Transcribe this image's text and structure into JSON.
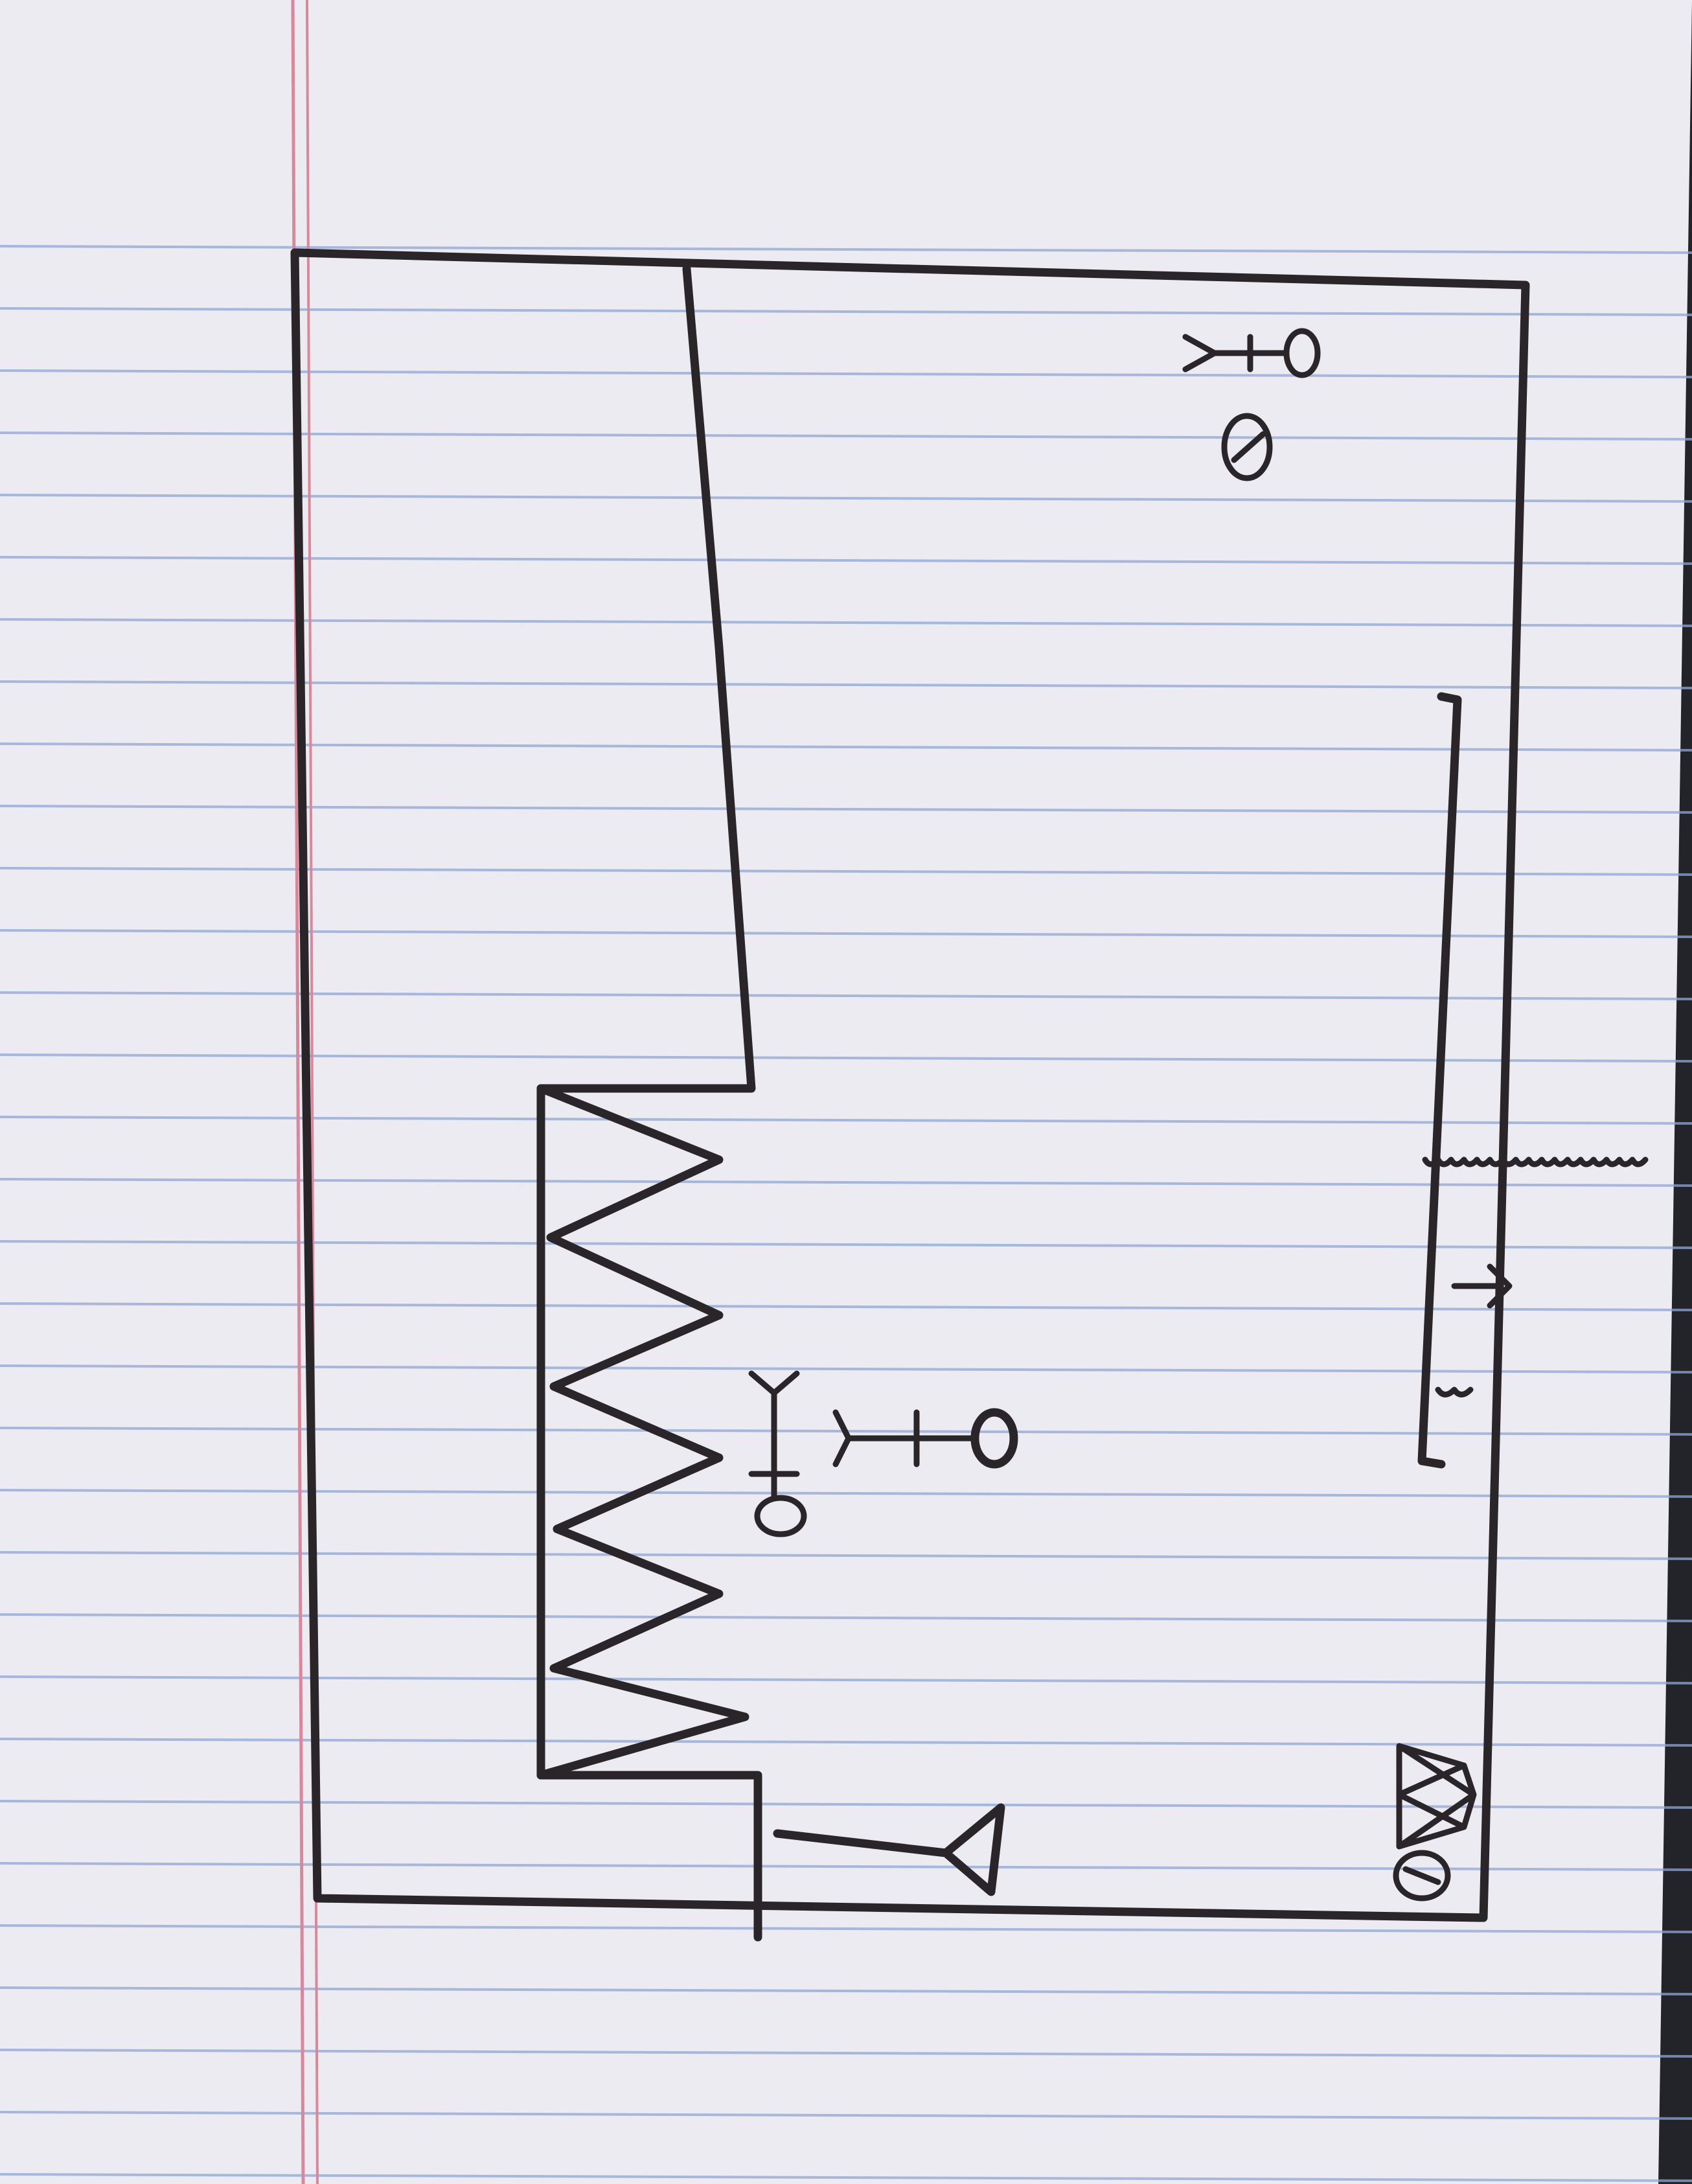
{
  "sketch": {
    "paper": {
      "color": "#ecebf2",
      "rule_color": "#8fa6d4",
      "margin_color": "#d9879a"
    },
    "ink_color": "#2a2528",
    "elements": [
      {
        "name": "level-frame",
        "kind": "frame"
      },
      {
        "name": "ground-platform",
        "kind": "terrain"
      },
      {
        "name": "spike-pit",
        "kind": "hazard",
        "spike_count": 5
      },
      {
        "name": "floating-ledge",
        "kind": "platform"
      },
      {
        "name": "player-character",
        "kind": "stick-figure"
      },
      {
        "name": "enemy-character",
        "kind": "stick-figure"
      },
      {
        "name": "spawn-character",
        "kind": "stick-figure"
      },
      {
        "name": "diamond-gem",
        "kind": "collectible"
      },
      {
        "name": "coin-tokens",
        "kind": "collectible",
        "count": 2
      },
      {
        "name": "goal-flag",
        "kind": "checkpoint"
      },
      {
        "name": "spring-pad",
        "kind": "object"
      }
    ]
  }
}
